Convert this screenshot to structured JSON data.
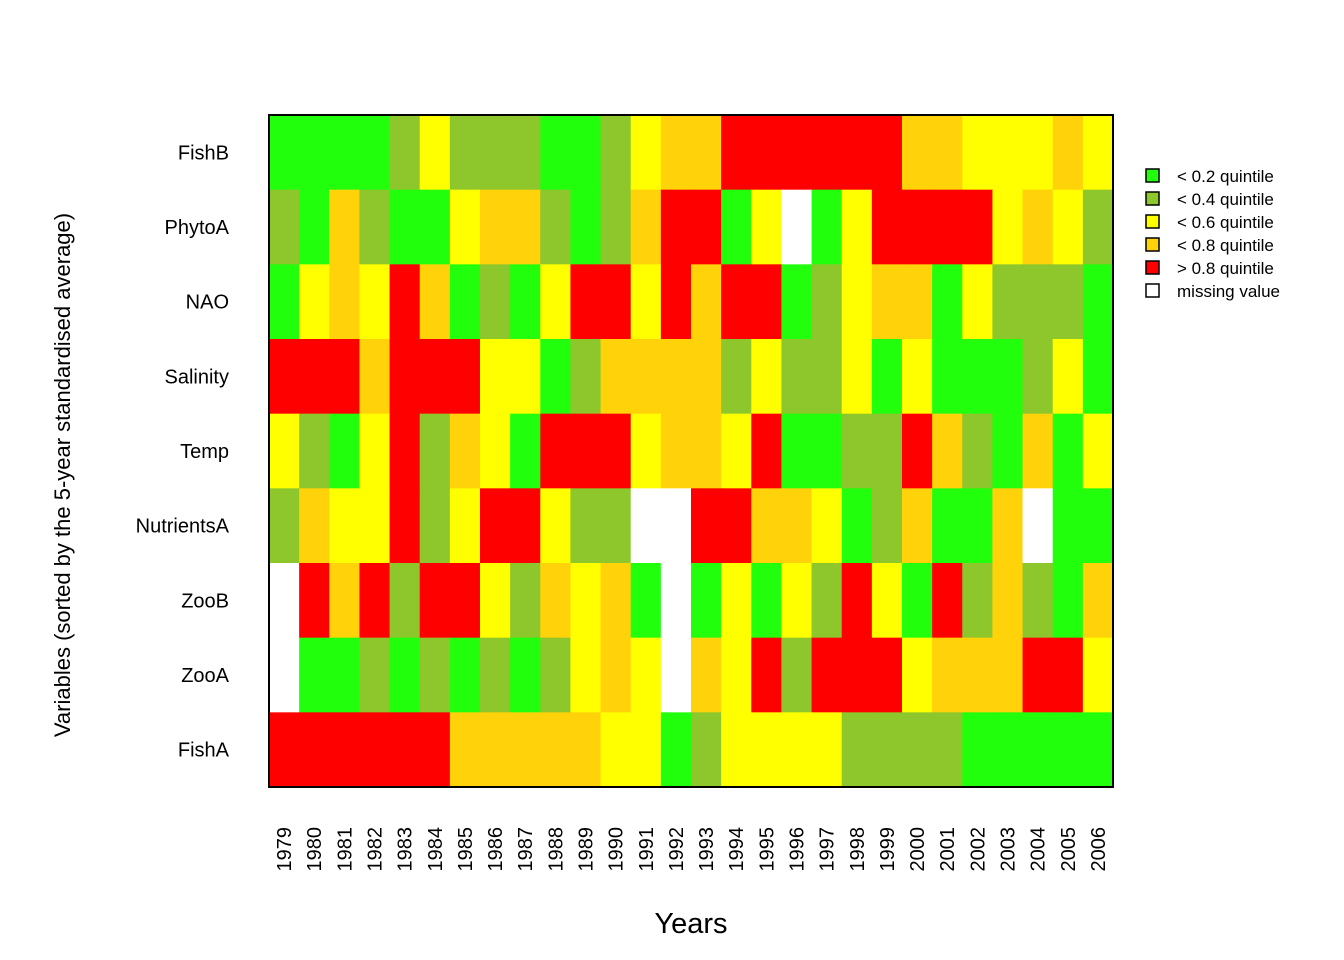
{
  "chart_data": {
    "type": "heatmap",
    "xlabel": "Years",
    "ylabel": "Variables (sorted by the 5-year standardised average)",
    "x": [
      "1979",
      "1980",
      "1981",
      "1982",
      "1983",
      "1984",
      "1985",
      "1986",
      "1987",
      "1988",
      "1989",
      "1990",
      "1991",
      "1992",
      "1993",
      "1994",
      "1995",
      "1996",
      "1997",
      "1998",
      "1999",
      "2000",
      "2001",
      "2002",
      "2003",
      "2004",
      "2005",
      "2006"
    ],
    "y": [
      "FishB",
      "PhytoA",
      "NAO",
      "Salinity",
      "Temp",
      "NutrientsA",
      "ZooB",
      "ZooA",
      "FishA"
    ],
    "legend": {
      "position": "right",
      "entries": [
        {
          "code": 1,
          "label": "< 0.2 quintile",
          "color": "#22ff0c"
        },
        {
          "code": 2,
          "label": "< 0.4 quintile",
          "color": "#8ec72b"
        },
        {
          "code": 3,
          "label": "< 0.6 quintile",
          "color": "#ffff00"
        },
        {
          "code": 4,
          "label": "< 0.8 quintile",
          "color": "#ffd20a"
        },
        {
          "code": 5,
          "label": "> 0.8 quintile",
          "color": "#ff0000"
        },
        {
          "code": 0,
          "label": "missing value",
          "color": "#ffffff"
        }
      ]
    },
    "values": [
      [
        1,
        1,
        1,
        1,
        2,
        3,
        2,
        2,
        2,
        1,
        1,
        2,
        3,
        4,
        4,
        5,
        5,
        5,
        5,
        5,
        5,
        4,
        4,
        3,
        3,
        3,
        4,
        3
      ],
      [
        2,
        1,
        4,
        2,
        1,
        1,
        3,
        4,
        4,
        2,
        1,
        2,
        4,
        5,
        5,
        1,
        3,
        0,
        1,
        3,
        5,
        5,
        5,
        5,
        3,
        4,
        3,
        2
      ],
      [
        1,
        3,
        4,
        3,
        5,
        4,
        1,
        2,
        1,
        3,
        5,
        5,
        3,
        5,
        4,
        5,
        5,
        1,
        2,
        3,
        4,
        4,
        1,
        3,
        2,
        2,
        2,
        1
      ],
      [
        5,
        5,
        5,
        4,
        5,
        5,
        5,
        3,
        3,
        1,
        2,
        4,
        4,
        4,
        4,
        2,
        3,
        2,
        2,
        3,
        1,
        3,
        1,
        1,
        1,
        2,
        3,
        1
      ],
      [
        3,
        2,
        1,
        3,
        5,
        2,
        4,
        3,
        1,
        5,
        5,
        5,
        3,
        4,
        4,
        3,
        5,
        1,
        1,
        2,
        2,
        5,
        4,
        2,
        1,
        4,
        1,
        3
      ],
      [
        2,
        4,
        3,
        3,
        5,
        2,
        3,
        5,
        5,
        3,
        2,
        2,
        0,
        0,
        5,
        5,
        4,
        4,
        3,
        1,
        2,
        4,
        1,
        1,
        4,
        0,
        1,
        1
      ],
      [
        0,
        5,
        4,
        5,
        2,
        5,
        5,
        3,
        2,
        4,
        3,
        4,
        1,
        0,
        1,
        3,
        1,
        3,
        2,
        5,
        3,
        1,
        5,
        2,
        4,
        2,
        1,
        4
      ],
      [
        0,
        1,
        1,
        2,
        1,
        2,
        1,
        2,
        1,
        2,
        3,
        4,
        3,
        0,
        4,
        3,
        5,
        2,
        5,
        5,
        5,
        3,
        4,
        4,
        4,
        5,
        5,
        3
      ],
      [
        5,
        5,
        5,
        5,
        5,
        5,
        4,
        4,
        4,
        4,
        4,
        3,
        3,
        1,
        2,
        3,
        3,
        3,
        3,
        2,
        2,
        2,
        2,
        1,
        1,
        1,
        1,
        1
      ]
    ]
  }
}
